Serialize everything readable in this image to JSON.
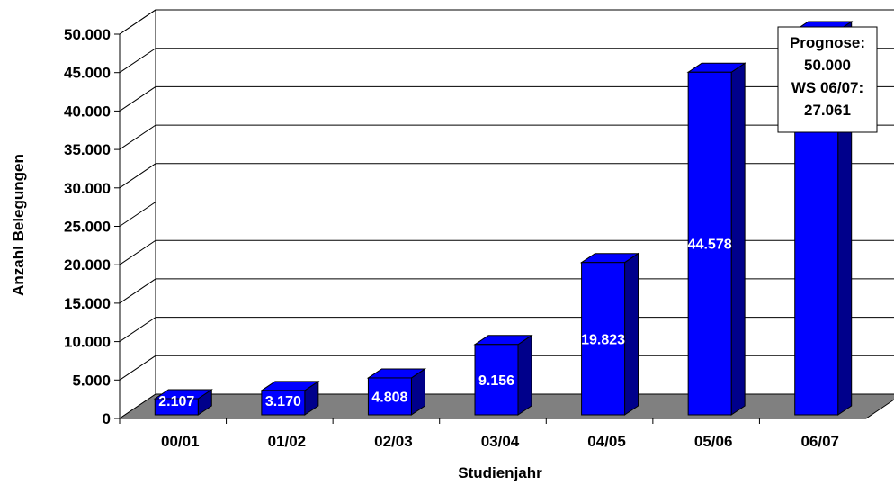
{
  "chart_data": {
    "type": "bar",
    "categories": [
      "00/01",
      "01/02",
      "02/03",
      "03/04",
      "04/05",
      "05/06",
      "06/07"
    ],
    "values": [
      2107,
      3170,
      4808,
      9156,
      19823,
      44578,
      50000
    ],
    "data_labels": [
      "2.107",
      "3.170",
      "4.808",
      "9.156",
      "19.823",
      "44.578",
      ""
    ],
    "xlabel": "Studienjahr",
    "ylabel": "Anzahl Belegungen",
    "ylim": [
      0,
      50000
    ],
    "yticks": [
      "0",
      "5.000",
      "10.000",
      "15.000",
      "20.000",
      "25.000",
      "30.000",
      "35.000",
      "40.000",
      "45.000",
      "50.000"
    ],
    "grid": true,
    "bar_color": "#0000ff",
    "floor_color": "#808080",
    "annotation": [
      "Prognose:",
      "50.000",
      "WS 06/07:",
      "27.061"
    ]
  }
}
